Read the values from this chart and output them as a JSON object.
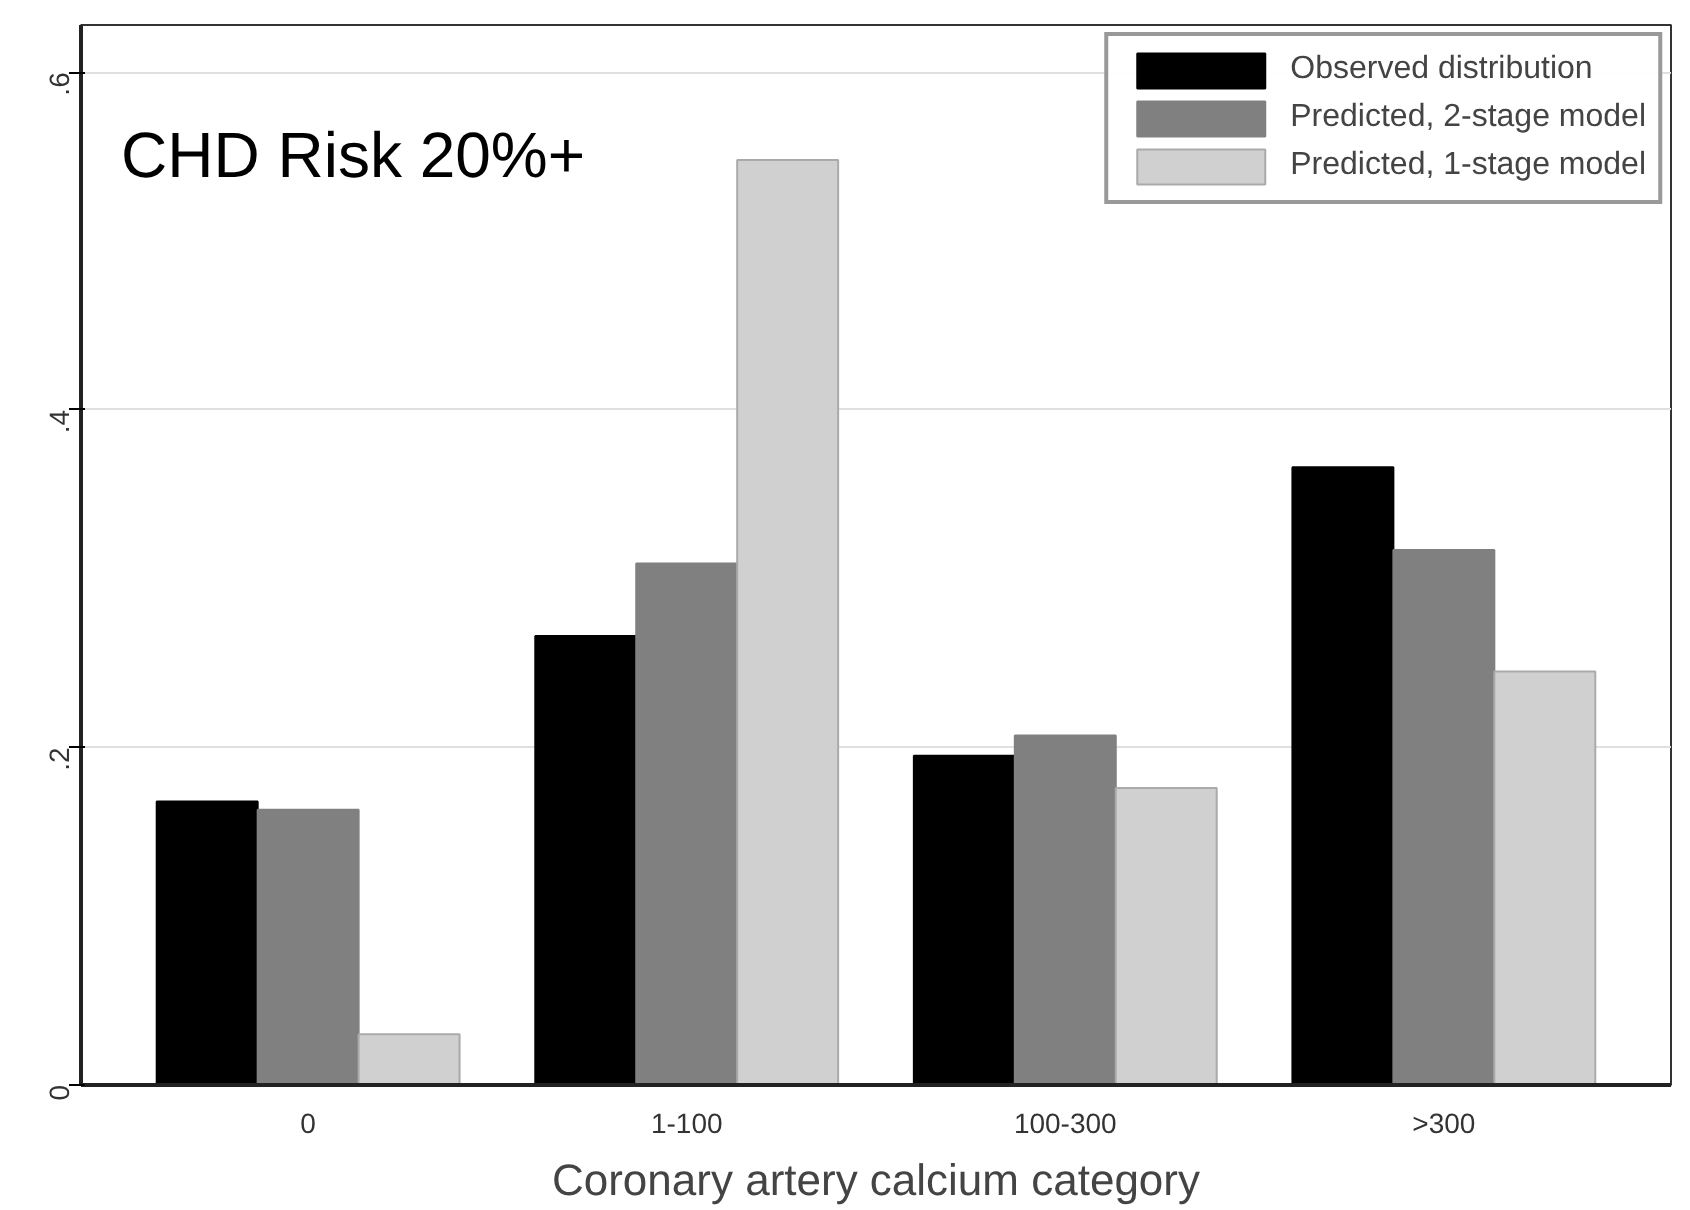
{
  "chart_data": {
    "type": "bar",
    "title": "CHD Risk 20%+",
    "xlabel": "Coronary artery calcium category",
    "categories": [
      "0",
      "1-100",
      "100-300",
      ">300"
    ],
    "series": [
      {
        "name": "Observed distribution",
        "color": "#000000",
        "values": [
          0.168,
          0.266,
          0.195,
          0.366
        ]
      },
      {
        "name": "Predicted, 2-stage model",
        "color": "#808080",
        "values": [
          0.163,
          0.309,
          0.207,
          0.317
        ]
      },
      {
        "name": "Predicted, 1-stage model",
        "color": "#d0d0d0",
        "values": [
          0.03,
          0.548,
          0.176,
          0.245
        ]
      }
    ],
    "ylim": [
      0,
      0.628
    ],
    "yticks": [
      0,
      {
        "value": 0.2,
        "label": ".2"
      },
      {
        "value": 0.4,
        "label": ".4"
      },
      {
        "value": 0.6,
        "label": ".6"
      }
    ],
    "grid": "y",
    "legend": "top right"
  }
}
